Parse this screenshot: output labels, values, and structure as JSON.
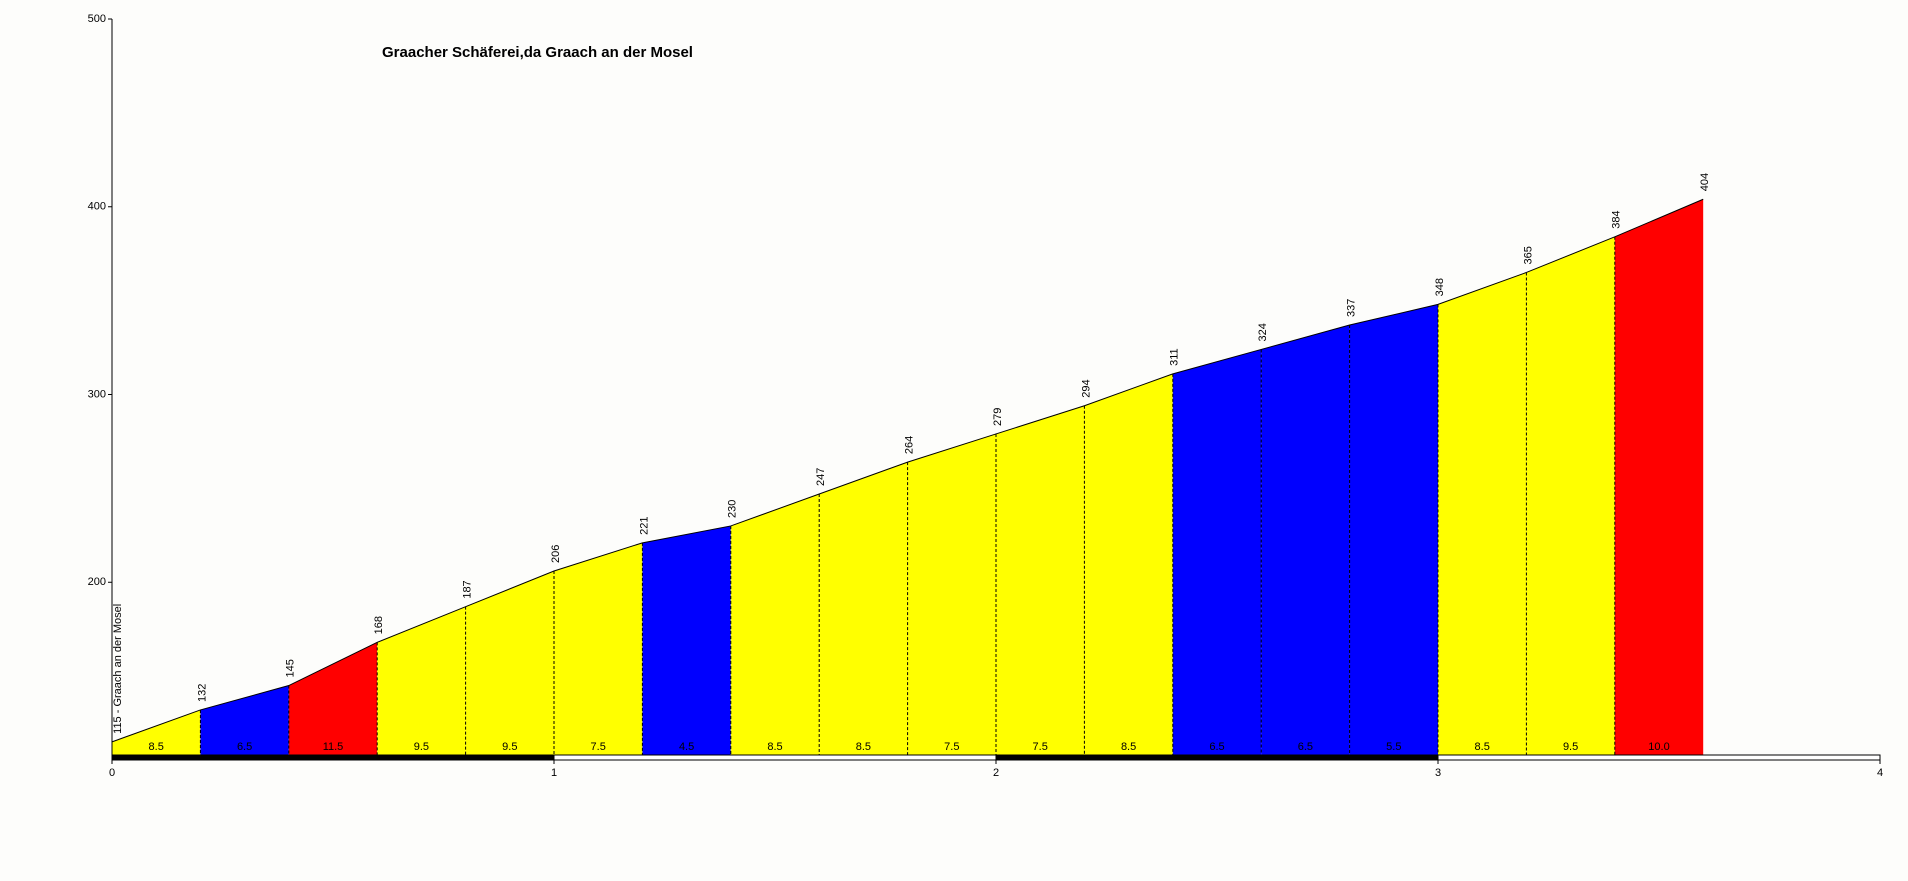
{
  "chart_data": {
    "type": "climb-profile",
    "title": "Graacher Schäferei,da Graach an der Mosel",
    "x": [
      0,
      0.2,
      0.4,
      0.6,
      0.8,
      1.0,
      1.2,
      1.4,
      1.6,
      1.8,
      2.0,
      2.2,
      2.4,
      2.6,
      2.8,
      3.0,
      3.2,
      3.4,
      3.6
    ],
    "elevations": [
      115,
      132,
      145,
      168,
      187,
      206,
      221,
      230,
      247,
      264,
      279,
      294,
      311,
      324,
      337,
      348,
      365,
      384,
      404
    ],
    "elevation_labels": [
      "115 - Graach an der Mosel",
      "132",
      "145",
      "168",
      "187",
      "206",
      "221",
      "230",
      "247",
      "264",
      "279",
      "294",
      "311",
      "324",
      "337",
      "348",
      "365",
      "384",
      "404"
    ],
    "gradients": [
      8.5,
      6.5,
      11.5,
      9.5,
      9.5,
      7.5,
      4.5,
      8.5,
      8.5,
      7.5,
      7.5,
      8.5,
      6.5,
      6.5,
      5.5,
      8.5,
      9.5,
      10.0
    ],
    "gradient_labels": [
      "8.5",
      "6.5",
      "11.5",
      "9.5",
      "9.5",
      "7.5",
      "4.5",
      "8.5",
      "8.5",
      "7.5",
      "7.5",
      "8.5",
      "6.5",
      "6.5",
      "5.5",
      "8.5",
      "9.5",
      "10.0"
    ],
    "colors": [
      "#ffff00",
      "#0000ff",
      "#ff0000",
      "#ffff00",
      "#ffff00",
      "#ffff00",
      "#0000ff",
      "#ffff00",
      "#ffff00",
      "#ffff00",
      "#ffff00",
      "#ffff00",
      "#0000ff",
      "#0000ff",
      "#0000ff",
      "#ffff00",
      "#ffff00",
      "#ff0000"
    ],
    "xlim": [
      0,
      4
    ],
    "xticks": [
      0,
      1,
      2,
      3,
      4
    ],
    "ylim": [
      108,
      500
    ],
    "yticks": [
      200,
      300,
      400,
      500
    ]
  }
}
